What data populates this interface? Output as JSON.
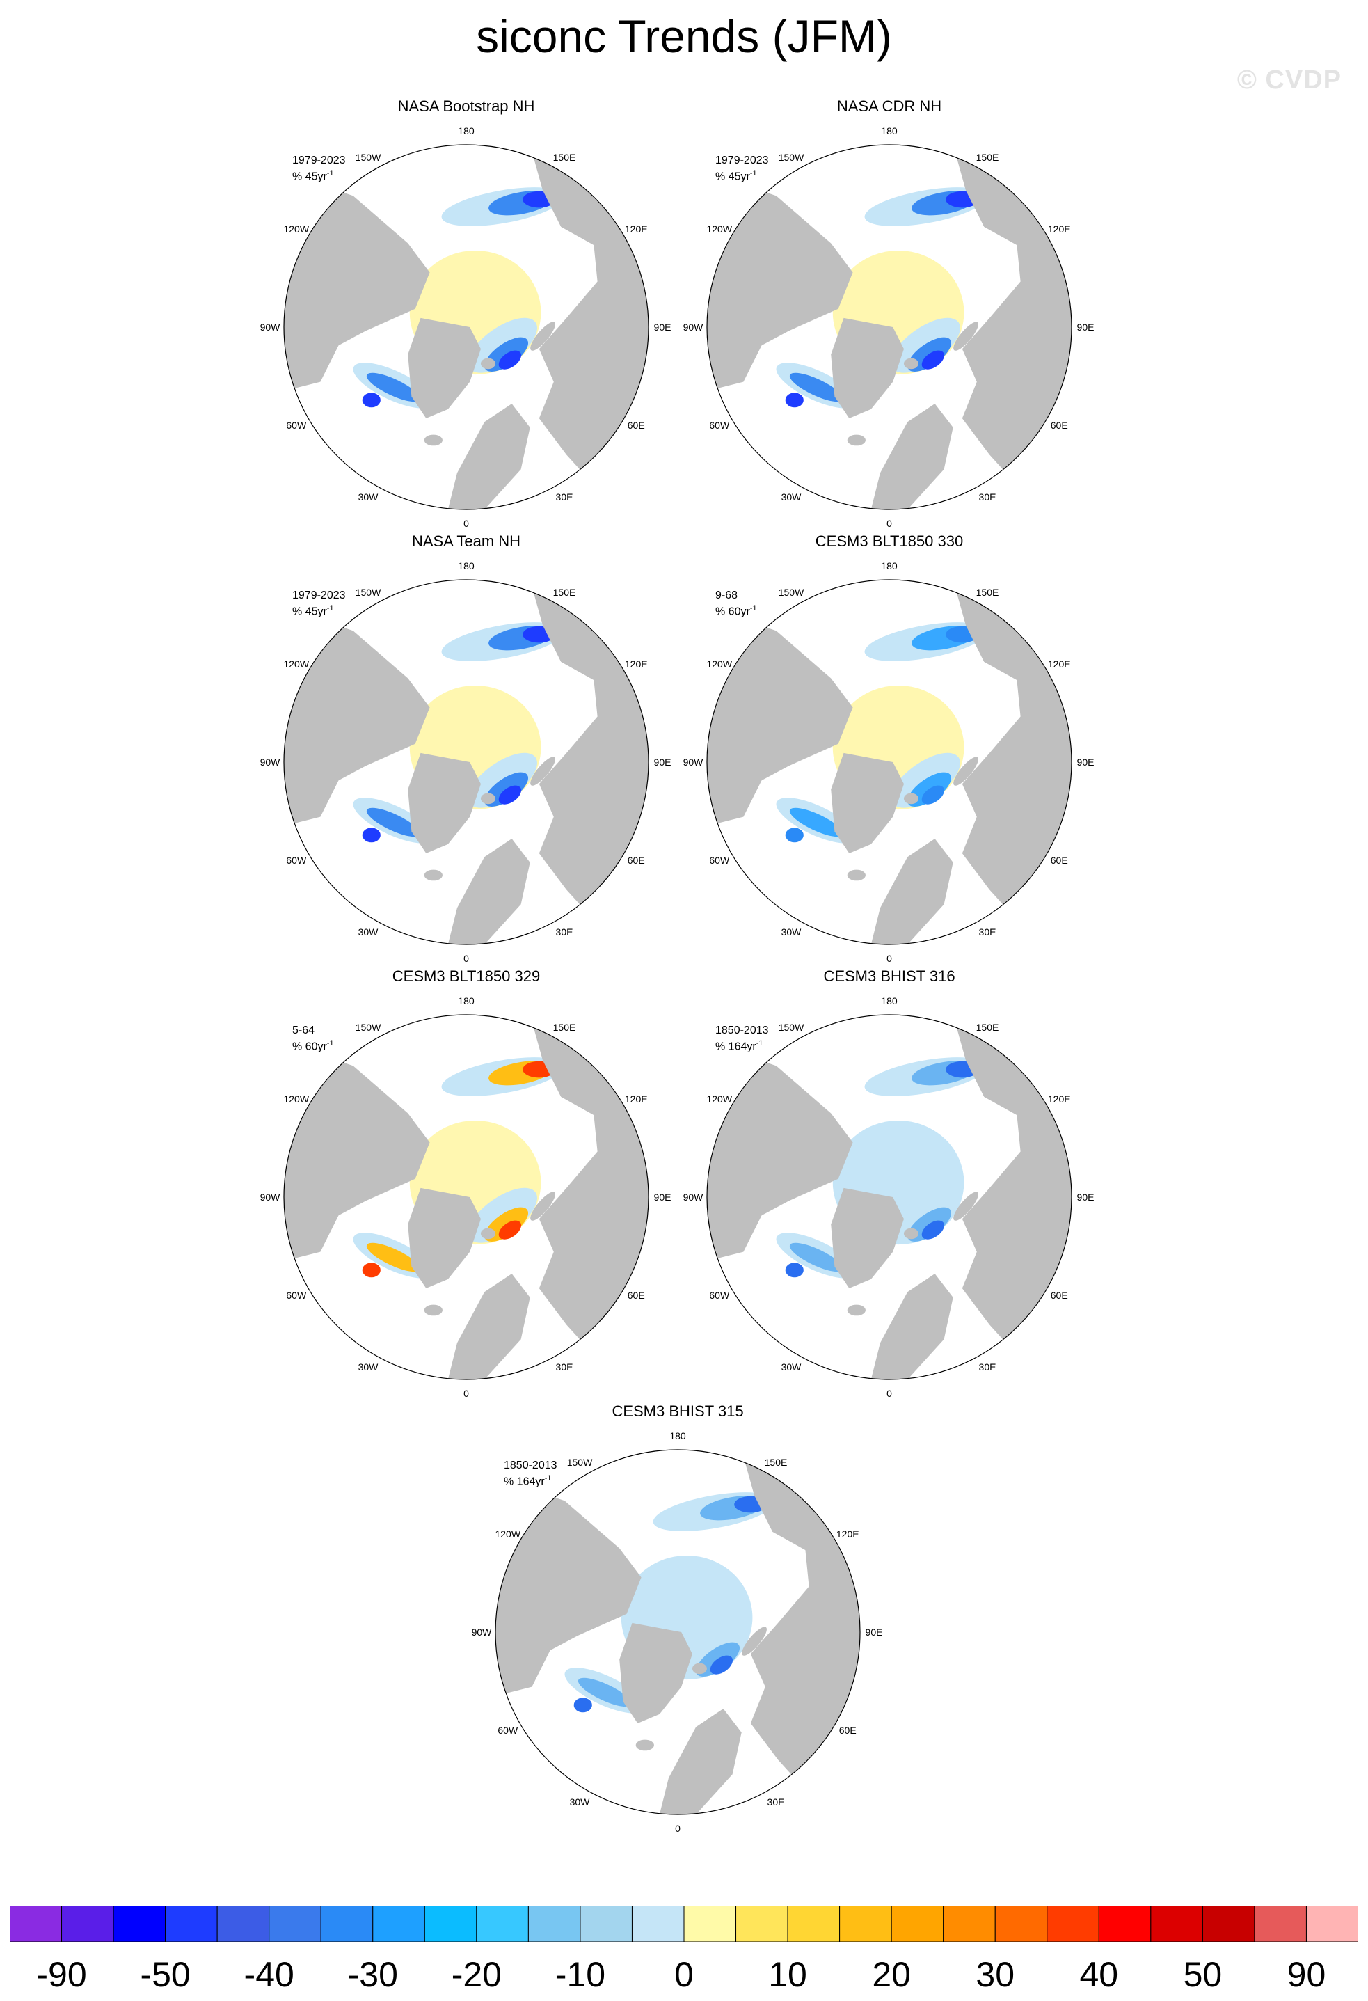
{
  "title": "siconc Trends (JFM)",
  "watermark": "© CVDP",
  "lon_labels": [
    "180",
    "150E",
    "120E",
    "90E",
    "60E",
    "30E",
    "0",
    "30W",
    "60W",
    "90W",
    "120W",
    "150W"
  ],
  "panels": [
    {
      "title": "NASA Bootstrap NH",
      "period": "1979-2023",
      "unit_prefix": "% 45yr",
      "unit_exp": "-1"
    },
    {
      "title": "NASA CDR NH",
      "period": "1979-2023",
      "unit_prefix": "% 45yr",
      "unit_exp": "-1"
    },
    {
      "title": "NASA Team NH",
      "period": "1979-2023",
      "unit_prefix": "% 45yr",
      "unit_exp": "-1"
    },
    {
      "title": "CESM3 BLT1850 330",
      "period": "9-68",
      "unit_prefix": "% 60yr",
      "unit_exp": "-1"
    },
    {
      "title": "CESM3 BLT1850 329",
      "period": "5-64",
      "unit_prefix": "% 60yr",
      "unit_exp": "-1"
    },
    {
      "title": "CESM3 BHIST 316",
      "period": "1850-2013",
      "unit_prefix": "% 164yr",
      "unit_exp": "-1"
    },
    {
      "title": "CESM3 BHIST 315",
      "period": "1850-2013",
      "unit_prefix": "% 164yr",
      "unit_exp": "-1"
    }
  ],
  "colorbar": {
    "labels": [
      "-90",
      "-50",
      "-40",
      "-30",
      "-20",
      "-10",
      "0",
      "10",
      "20",
      "30",
      "40",
      "50",
      "90"
    ],
    "colors": [
      "#8a2be2",
      "#5a1ee8",
      "#0000ff",
      "#1e3cff",
      "#3c5ce6",
      "#3a7aec",
      "#2a8af6",
      "#1ea0ff",
      "#0bbcff",
      "#37c8ff",
      "#78c6f2",
      "#a3d5ee",
      "#c5e5f7",
      "#fffaa8",
      "#ffe55a",
      "#ffd633",
      "#ffbe14",
      "#ffa500",
      "#ff8c00",
      "#ff6a00",
      "#ff3c00",
      "#ff0000",
      "#dc0000",
      "#c80000",
      "#e65a5a",
      "#ffb4b4"
    ]
  },
  "colors": {
    "land": "#bfbfbf",
    "ocean": "#ffffff",
    "frame": "#000000"
  }
}
